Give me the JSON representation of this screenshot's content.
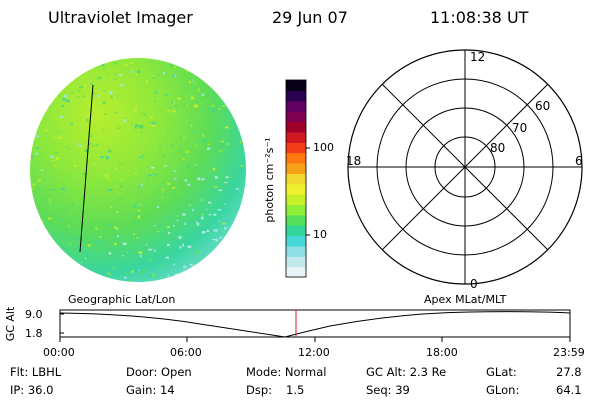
{
  "header": {
    "instrument": "Ultraviolet Imager",
    "date": "29 Jun 07",
    "time": "11:08:38 UT"
  },
  "colorbar": {
    "unit_label": "photon cm⁻²s⁻¹",
    "tick_labels": [
      "100",
      "10"
    ],
    "colors": [
      "#e8f4f8",
      "#c2eaee",
      "#8fdfe6",
      "#46d8d6",
      "#33d49a",
      "#55e05a",
      "#8ef038",
      "#c8f02a",
      "#eef030",
      "#f2d830",
      "#f6a018",
      "#ff7810",
      "#f03c18",
      "#d01820",
      "#a00028",
      "#800050",
      "#600060",
      "#2c0050",
      "#060018"
    ]
  },
  "polar": {
    "lat_labels": [
      "80",
      "70",
      "60"
    ],
    "mlt_labels": {
      "top": "12",
      "bottom": "0",
      "left": "18",
      "right": "6"
    }
  },
  "timeline": {
    "left_title": "Geographic Lat/Lon",
    "right_title": "Apex MLat/MLT",
    "axis_label": "GC Alt",
    "y_ticks": [
      "9.0",
      "1.8"
    ],
    "x_ticks": [
      "00:00",
      "06:00",
      "12:00",
      "18:00",
      "23:59"
    ],
    "marker_color": "#cc2222"
  },
  "info": {
    "flt": "Flt: LBHL",
    "ip": "IP: 36.0",
    "door": "Door: Open",
    "gain": "Gain: 14",
    "mode": "Mode: Normal",
    "dsp_label": "Dsp:",
    "dsp_value": "1.5",
    "gcalt": "GC Alt: 2.3 Re",
    "seq": "Seq: 39",
    "glat_label": "GLat:",
    "glat_value": "27.8",
    "glon_label": "GLon:",
    "glon_value": "64.1"
  }
}
